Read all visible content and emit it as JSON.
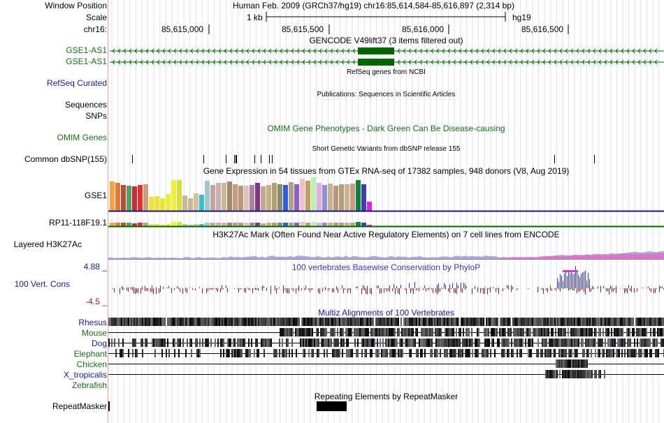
{
  "header": {
    "window_position_label": "Window Position",
    "assembly_position": "Human Feb. 2009 (GRCh37/hg19)   chr16:85,614,584-85,616,897 (2,314 bp)",
    "scale_label": "Scale",
    "scale_bar_label": "1 kb",
    "scale_assembly": "hg19",
    "chrom_label": "chr16:",
    "base_ticks": [
      "85,615,000",
      "85,615,500",
      "85,616,000",
      "85,616,500"
    ]
  },
  "tracks": {
    "gencode": {
      "title": "GENCODE V49lift37 (3 items filtered out)",
      "items": [
        "GSE1-AS1",
        "GSE1-AS1"
      ]
    },
    "refseq": {
      "title": "RefSeq genes from NCBI",
      "label": "RefSeq Curated"
    },
    "publications": {
      "title": "Publications: Sequences in Scientific Articles",
      "label_line1": "Sequences",
      "label_line2": "SNPs"
    },
    "omim": {
      "label": "OMIM Genes",
      "title": "OMIM Gene Phenotypes - Dark Green Can Be Disease-causing"
    },
    "dbsnp": {
      "title": "Short Genetic Variants from dbSNP release 155",
      "label": "Common dbSNP(155)"
    },
    "gtex": {
      "title": "Gene Expression in 54 tissues from GTEx RNA-seq of 17382 samples, 948 donors (V8, Aug 2019)",
      "genes": [
        "GSE1",
        "RP11-118F19.1"
      ]
    },
    "h3k27ac": {
      "title": "H3K27Ac Mark (Often Found Near Active Regulatory Elements) on 7 cell lines from ENCODE",
      "label": "Layered H3K27Ac"
    },
    "phylop": {
      "title": "100 vertebrates Basewise Conservation by PhyloP",
      "label": "100 Vert. Cons",
      "max_label": "4.88 _",
      "min_label": "-4.5 _"
    },
    "multiz": {
      "title": "Multiz Alignments of 100 Vertebrates",
      "species": [
        "Rhesus",
        "Mouse",
        "Dog",
        "Elephant",
        "Chicken",
        "X_tropicalis",
        "Zebrafish"
      ]
    },
    "repeatmasker": {
      "title": "Repeating Elements by RepeatMasker",
      "label": "RepeatMasker"
    }
  },
  "colors": {
    "gene_green": "#006400",
    "label_green": "#1a6b1a",
    "label_blue": "#1a1a8a",
    "phylop_pos": "#3a3aa0",
    "phylop_neg": "#8b2020",
    "divider": "#e8a0a0"
  }
}
